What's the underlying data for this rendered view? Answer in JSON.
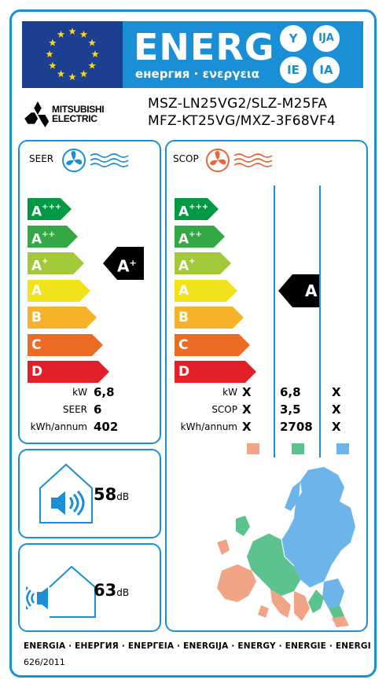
{
  "header": {
    "energy_word": "ENERG",
    "energy_subtitle": "енергия · ενεργεια",
    "suffixes": [
      "Y",
      "IJA",
      "IE",
      "IA"
    ],
    "flag_icon": "eu-flag"
  },
  "supplier": {
    "logo_icon": "mitsubishi-three-diamonds",
    "logo_line1": "MITSUBISHI",
    "logo_line2": "ELECTRIC",
    "model_line1": "MSZ-LN25VG2/SLZ-M25FA",
    "model_line2": "MFZ-KT25VG/MXZ-3F68VF4"
  },
  "cooling": {
    "title": "SEER",
    "icon": "fan-cooling-icon",
    "classes": [
      {
        "label": "A",
        "sup": "+++",
        "color": "#009a44"
      },
      {
        "label": "A",
        "sup": "++",
        "color": "#33a845"
      },
      {
        "label": "A",
        "sup": "+",
        "color": "#a3c83a"
      },
      {
        "label": "A",
        "sup": "",
        "color": "#f2e21b"
      },
      {
        "label": "B",
        "sup": "",
        "color": "#f6b32a"
      },
      {
        "label": "C",
        "sup": "",
        "color": "#ec6c26"
      },
      {
        "label": "D",
        "sup": "",
        "color": "#e2202a"
      }
    ],
    "rating": "A",
    "rating_sup": "+",
    "rating_index": 2,
    "rows": [
      {
        "label": "kW",
        "value": "6,8"
      },
      {
        "label": "SEER",
        "value": "6"
      },
      {
        "label": "kWh/annum",
        "value": "402"
      }
    ]
  },
  "heating": {
    "title": "SCOP",
    "icon": "fan-heating-icon",
    "classes": [
      {
        "label": "A",
        "sup": "+++",
        "color": "#009a44"
      },
      {
        "label": "A",
        "sup": "++",
        "color": "#33a845"
      },
      {
        "label": "A",
        "sup": "+",
        "color": "#a3c83a"
      },
      {
        "label": "A",
        "sup": "",
        "color": "#f2e21b"
      },
      {
        "label": "B",
        "sup": "",
        "color": "#f6b32a"
      },
      {
        "label": "C",
        "sup": "",
        "color": "#ec6c26"
      },
      {
        "label": "D",
        "sup": "",
        "color": "#e2202a"
      }
    ],
    "rating": "A",
    "rating_index": 3,
    "rows": [
      {
        "label": "kW",
        "values": [
          "X",
          "6,8",
          "X"
        ]
      },
      {
        "label": "SCOP",
        "values": [
          "X",
          "3,5",
          "X"
        ]
      },
      {
        "label": "kWh/annum",
        "values": [
          "X",
          "2708",
          "X"
        ]
      }
    ],
    "zone_colors": [
      "#f2a487",
      "#5cc28e",
      "#6cb4ea"
    ],
    "map_icon": "europe-climate-zones-map"
  },
  "noise": {
    "indoor": {
      "value": "58",
      "unit": "dB",
      "icon": "indoor-speaker-icon"
    },
    "outdoor": {
      "value": "63",
      "unit": "dB",
      "icon": "outdoor-speaker-icon"
    }
  },
  "footer": {
    "languages": "ENERGIA · ЕНЕРГИЯ · ΕΝΕΡΓΕΙΑ · ENERGIJA · ENERGY · ENERGIE · ENERGI",
    "regulation": "626/2011"
  }
}
